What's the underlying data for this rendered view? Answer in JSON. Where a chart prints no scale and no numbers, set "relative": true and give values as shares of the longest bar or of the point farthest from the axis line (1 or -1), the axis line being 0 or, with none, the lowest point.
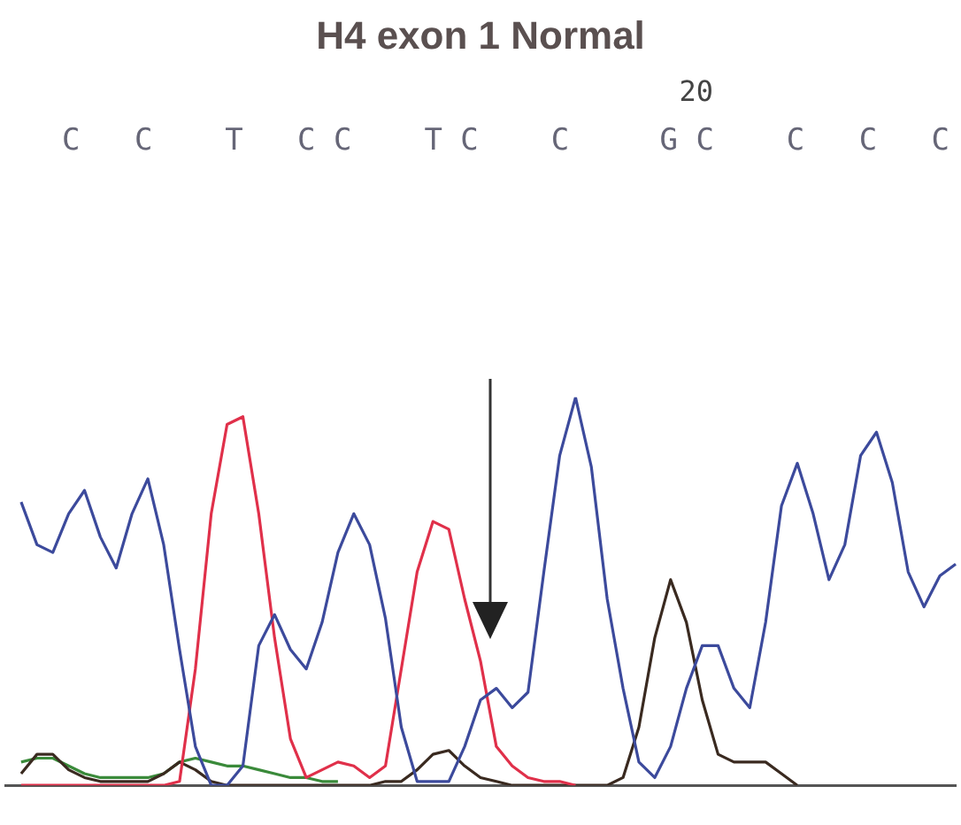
{
  "chart_data": {
    "type": "line",
    "title": "H4 exon 1 Normal",
    "relative": true,
    "legend": false,
    "marker": "none",
    "line_style": "solid",
    "annotations": [
      "20",
      "C   C    T   C C    T C    C     G C    C   C   C"
    ],
    "categories": [
      null,
      null,
      null,
      null,
      null,
      null,
      null,
      null,
      null,
      null,
      null,
      null,
      null,
      null,
      null,
      null,
      null,
      null,
      null,
      null,
      null,
      null,
      null,
      null,
      null,
      null,
      null,
      null,
      null,
      null,
      null,
      null,
      null,
      null,
      null,
      null,
      null,
      null,
      null,
      null,
      null,
      null,
      null,
      null,
      null,
      null,
      null,
      null,
      null,
      null,
      null,
      null,
      null,
      null,
      null,
      null,
      null,
      null,
      null,
      null,
      null
    ],
    "series": [
      {
        "color": "#3c4a9c",
        "values": [
          null,
          0.73,
          0.62,
          0.6,
          0.7,
          0.76,
          0.64,
          0.56,
          0.7,
          0.79,
          0.62,
          0.35,
          0.1,
          0,
          0,
          0.05,
          0.36,
          0.44,
          0.35,
          0.3,
          0.42,
          0.6,
          0.7,
          0.62,
          0.43,
          0.15,
          0.01,
          0.01,
          0.01,
          0.1,
          0.22,
          0.25,
          0.2,
          0.24,
          0.55,
          0.85,
          1,
          0.82,
          0.48,
          0.25,
          0.06,
          0.02,
          0.1,
          0.25,
          0.36,
          0.36,
          0.25,
          0.2,
          0.42,
          0.72,
          0.83,
          0.7,
          0.53,
          0.62,
          0.85,
          0.91,
          0.78,
          0.55,
          0.46,
          0.54,
          0.57
        ]
      },
      {
        "color": "#e0304a",
        "values": [
          null,
          0,
          0,
          0,
          0,
          0,
          0,
          0,
          0,
          0,
          0,
          0.01,
          0.3,
          0.7,
          0.93,
          0.95,
          0.7,
          0.38,
          0.12,
          0.02,
          0.04,
          0.06,
          0.05,
          0.02,
          0.05,
          0.3,
          0.55,
          0.68,
          0.66,
          0.48,
          0.32,
          0.1,
          0.05,
          0.02,
          0.01,
          0.01,
          0,
          null,
          null,
          null,
          null,
          null,
          null,
          null,
          null,
          null,
          null,
          null,
          null,
          null,
          null,
          null,
          null,
          null,
          null,
          null,
          null,
          null,
          null,
          null,
          null
        ]
      },
      {
        "color": "#3a2a20",
        "values": [
          null,
          0.03,
          0.08,
          0.08,
          0.04,
          0.02,
          0.01,
          0.01,
          0.01,
          0.01,
          0.03,
          0.06,
          0.04,
          0.01,
          0,
          0,
          0,
          0,
          0,
          0,
          0,
          0,
          0,
          0,
          0.01,
          0.01,
          0.04,
          0.08,
          0.09,
          0.05,
          0.02,
          0.01,
          0,
          0,
          0,
          0,
          0,
          0,
          0,
          0.02,
          0.15,
          0.38,
          0.53,
          0.42,
          0.22,
          0.08,
          0.06,
          0.06,
          0.06,
          0.03,
          0,
          null,
          null,
          null,
          null,
          null,
          null,
          null,
          null,
          null,
          null
        ]
      },
      {
        "color": "#3a8a3a",
        "values": [
          null,
          0.06,
          0.07,
          0.07,
          0.05,
          0.03,
          0.02,
          0.02,
          0.02,
          0.02,
          0.03,
          0.06,
          0.07,
          0.06,
          0.05,
          0.05,
          0.04,
          0.03,
          0.02,
          0.02,
          0.01,
          0.01,
          null,
          null,
          null,
          null,
          null,
          null,
          null,
          null,
          null,
          null,
          null,
          null,
          null,
          null,
          null,
          null,
          null,
          null,
          null,
          null,
          null,
          null,
          null,
          null,
          null,
          null,
          null,
          null,
          null,
          null,
          null,
          null,
          null,
          null,
          null,
          null,
          null,
          null,
          null
        ]
      }
    ]
  }
}
